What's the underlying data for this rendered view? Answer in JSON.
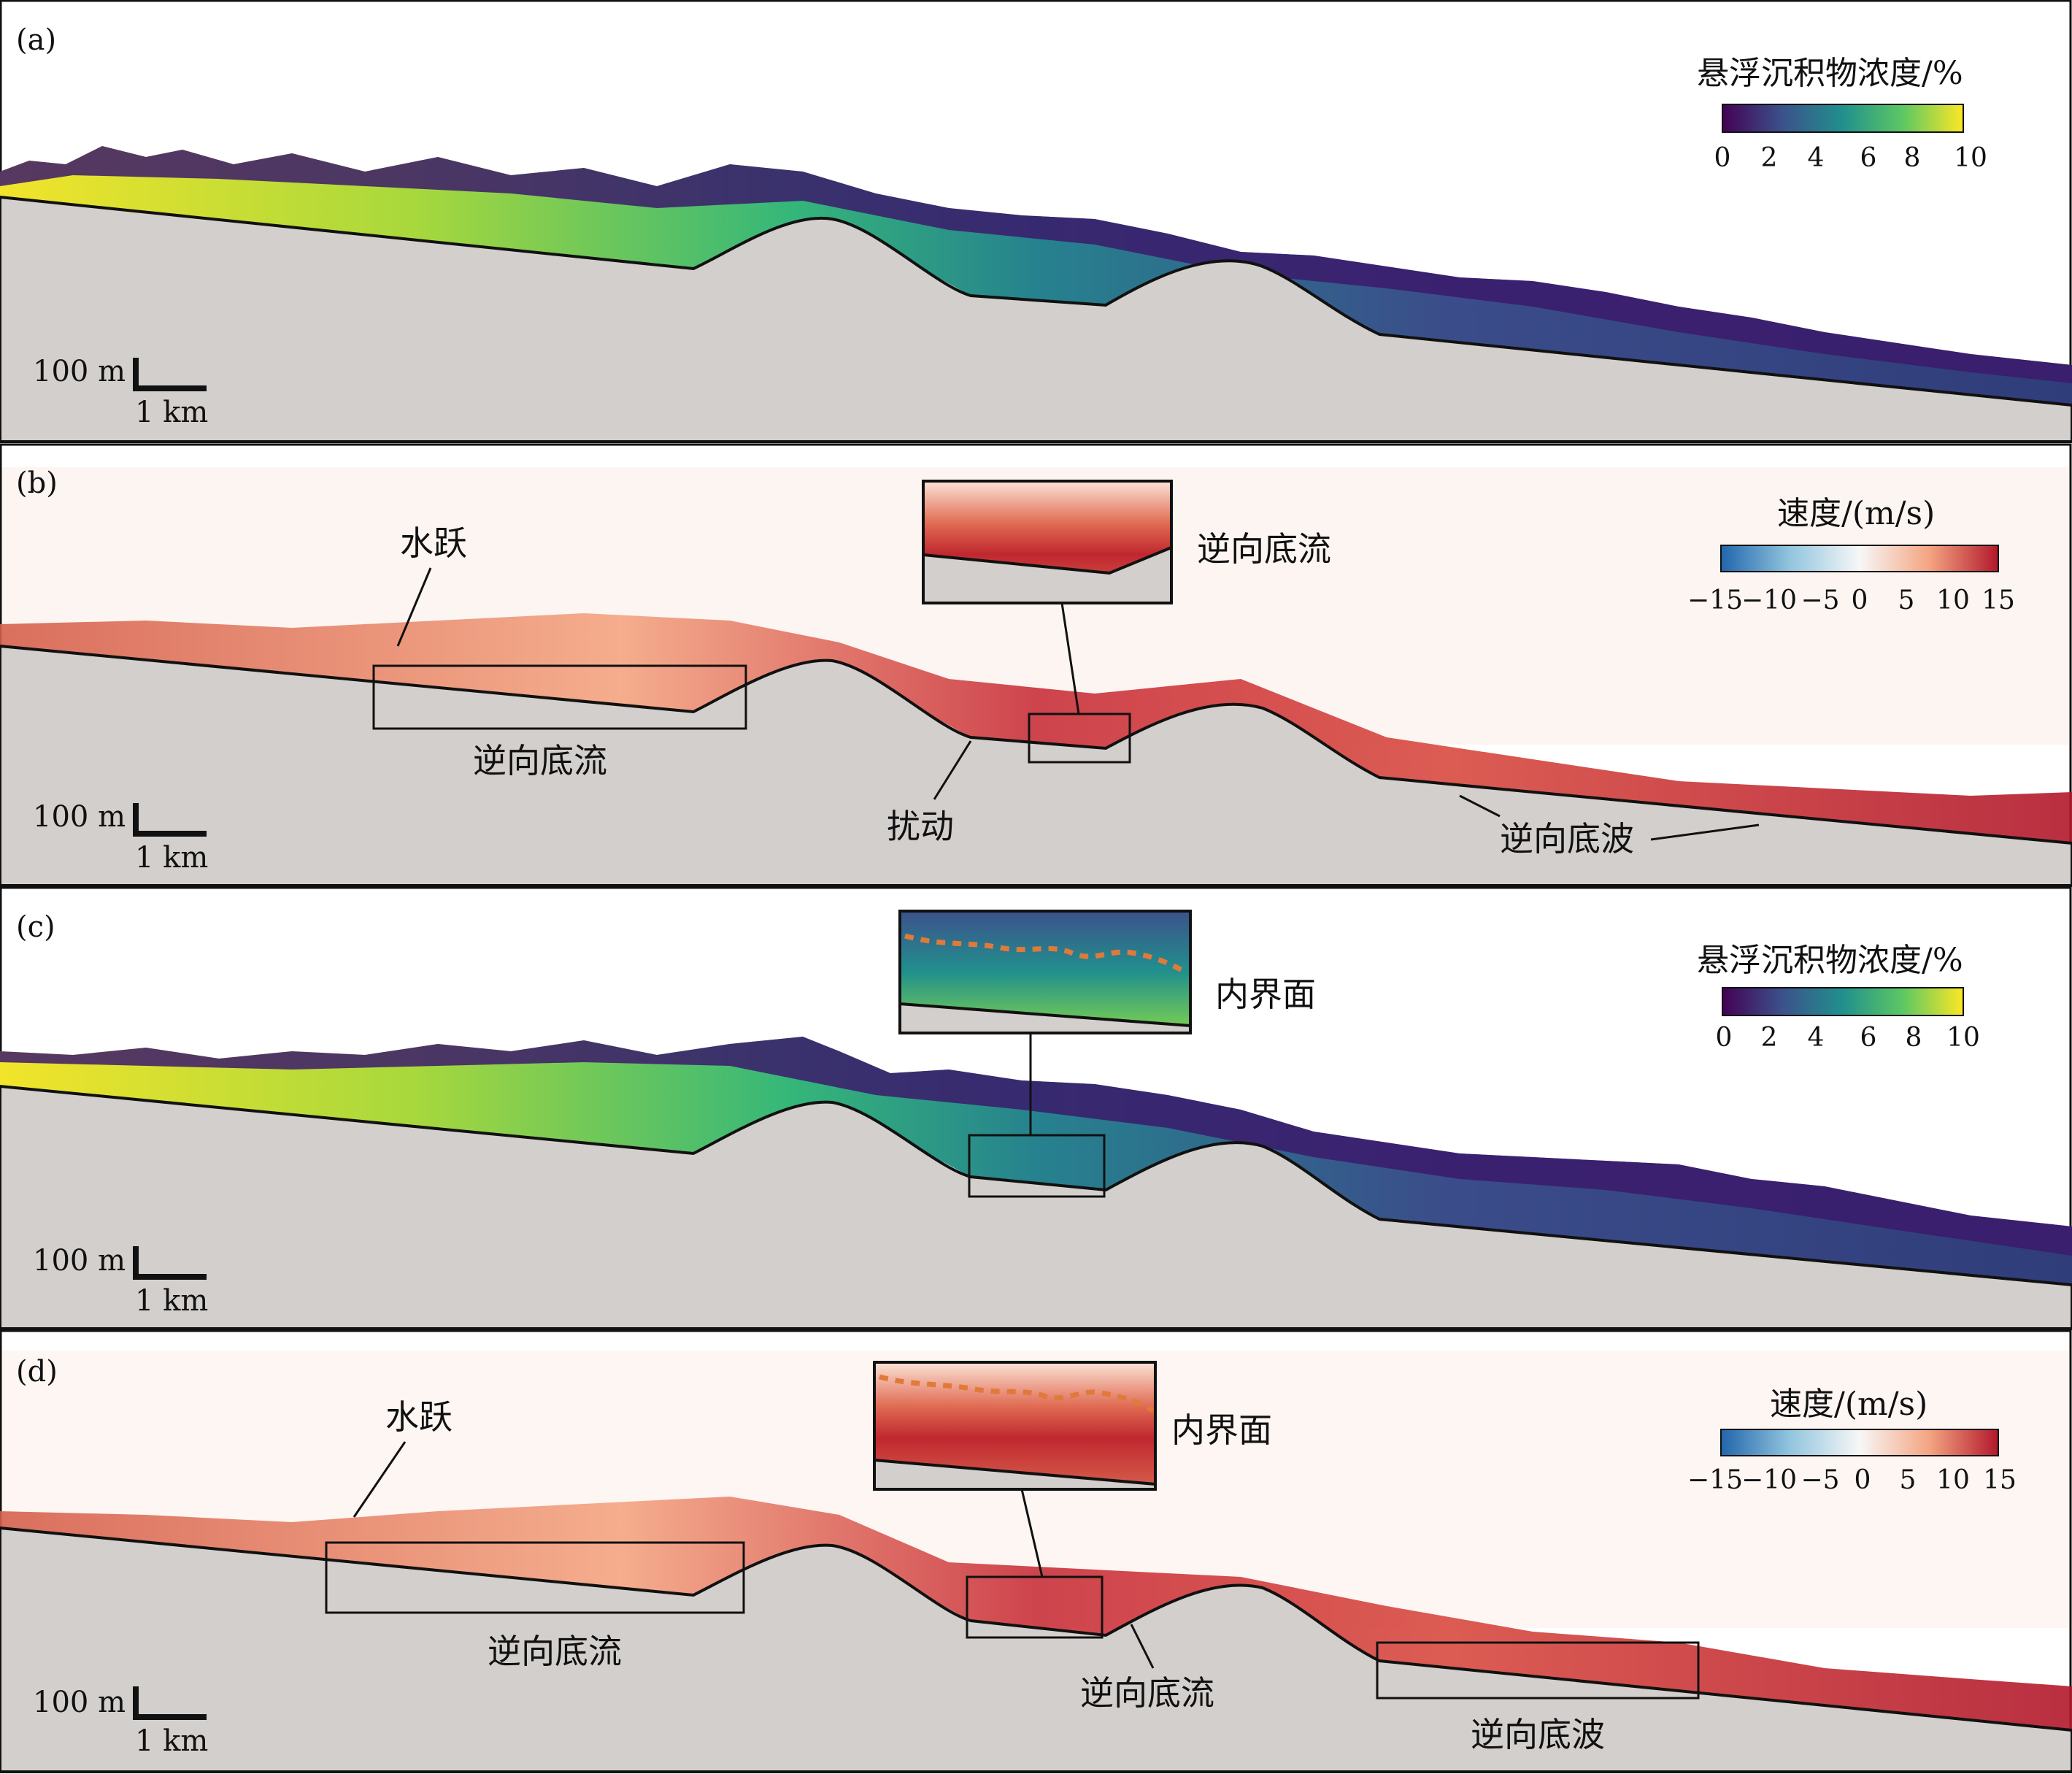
{
  "panels": [
    {
      "letter": "(a)",
      "kind": "concentration",
      "colorbar": {
        "title": "悬浮沉积物浓度/%",
        "ticks": [
          "0",
          "2",
          "4",
          "6",
          "8",
          "10"
        ]
      },
      "scale": {
        "vertical": "100 m",
        "horizontal": "1 km"
      }
    },
    {
      "letter": "(b)",
      "kind": "velocity",
      "colorbar": {
        "title": "速度/(m/s)",
        "ticks": [
          "−15",
          "−10",
          "−5",
          "0",
          "5",
          "10",
          "15"
        ]
      },
      "scale": {
        "vertical": "100 m",
        "horizontal": "1 km"
      }
    },
    {
      "letter": "(c)",
      "kind": "concentration",
      "colorbar": {
        "title": "悬浮沉积物浓度/%",
        "ticks": [
          "0",
          "2",
          "4",
          "6",
          "8",
          "10"
        ]
      },
      "scale": {
        "vertical": "100 m",
        "horizontal": "1 km"
      }
    },
    {
      "letter": "(d)",
      "kind": "velocity",
      "colorbar": {
        "title": "速度/(m/s)",
        "ticks": [
          "−15",
          "−10",
          "−5",
          "0",
          "5",
          "10",
          "15"
        ]
      },
      "scale": {
        "vertical": "100 m",
        "horizontal": "1 km"
      }
    }
  ],
  "annotations": {
    "b": {
      "hydraulic_jump": "水跃",
      "reverse_underflow_left": "逆向底流",
      "inset_reverse_underflow": "逆向底流",
      "disturbance": "扰动",
      "reverse_bedwave": "逆向底波"
    },
    "c": {
      "internal_interface": "内界面"
    },
    "d": {
      "hydraulic_jump": "水跃",
      "reverse_underflow_left": "逆向底流",
      "internal_interface": "内界面",
      "reverse_underflow_mid": "逆向底流",
      "reverse_bedwave": "逆向底波"
    }
  },
  "colors": {
    "frame": "#111111",
    "terrain": "#d3cfcc",
    "viridis": [
      "#440154",
      "#3b528b",
      "#21908d",
      "#5dc863",
      "#fde725"
    ],
    "velocity": [
      "#2166ac",
      "#92c5de",
      "#f7f7f7",
      "#f4a582",
      "#b2182b"
    ],
    "interface_dash": "#e07a3a"
  }
}
